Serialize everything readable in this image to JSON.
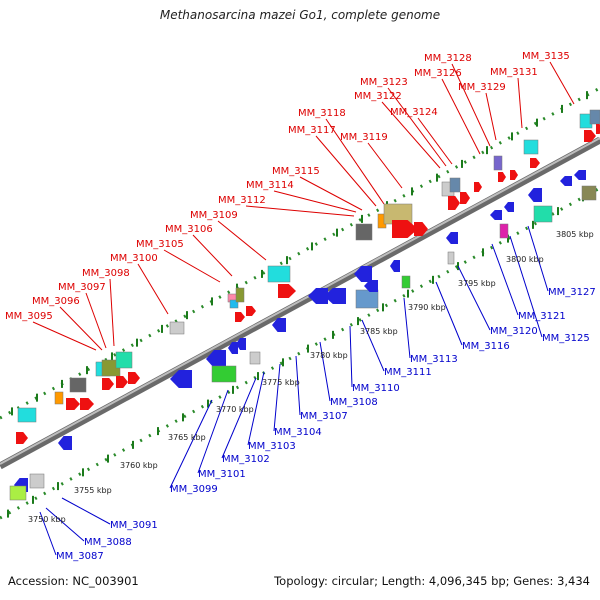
{
  "title": "Methanosarcina mazei Go1, complete genome",
  "footer": {
    "accession": "Accession: NC_003901",
    "summary": "Topology: circular; Length: 4,096,345 bp; Genes: 3,434"
  },
  "colors": {
    "forward_label": "#dd0000",
    "reverse_label": "#0000cc",
    "backbone": "#8a8a8a",
    "tick": "#1a7a1a"
  },
  "top_labels": [
    "MM_3095",
    "MM_3096",
    "MM_3097",
    "MM_3098",
    "MM_3100",
    "MM_3105",
    "MM_3106",
    "MM_3109",
    "MM_3112",
    "MM_3114",
    "MM_3115",
    "MM_3117",
    "MM_3118",
    "MM_3119",
    "MM_3122",
    "MM_3123",
    "MM_3124",
    "MM_3126",
    "MM_3128",
    "MM_3129",
    "MM_3131",
    "MM_3135"
  ],
  "bottom_labels": [
    "MM_3087",
    "MM_3088",
    "MM_3091",
    "MM_3099",
    "MM_3101",
    "MM_3102",
    "MM_3103",
    "MM_3104",
    "MM_3107",
    "MM_3108",
    "MM_3110",
    "MM_3111",
    "MM_3113",
    "MM_3116",
    "MM_3120",
    "MM_3121",
    "MM_3125",
    "MM_3127"
  ],
  "scale_labels": [
    "3750 kbp",
    "3755 kbp",
    "3760 kbp",
    "3765 kbp",
    "3770 kbp",
    "3775 kbp",
    "3780 kbp",
    "3785 kbp",
    "3790 kbp",
    "3795 kbp",
    "3800 kbp",
    "3805 kbp"
  ]
}
